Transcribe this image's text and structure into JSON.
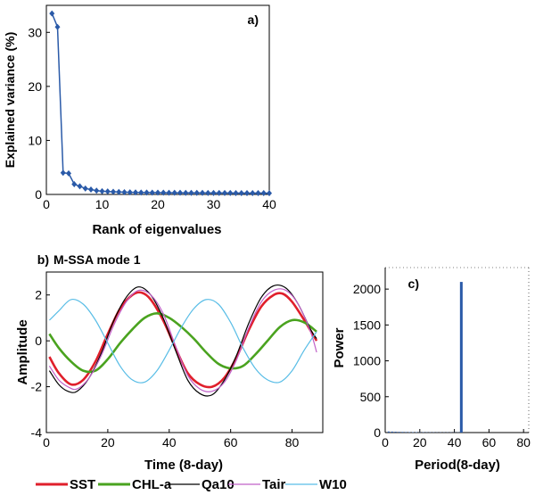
{
  "colors": {
    "SST": "#e01f2b",
    "CHL-a": "#4aa31f",
    "Qa10": "#000000",
    "Tair": "#c060c8",
    "W10": "#59bde6",
    "scree": "#2a5aa8",
    "spectrum": "#2a5aa8"
  },
  "chart_data": [
    {
      "type": "line",
      "panel_label": "a)",
      "title": "",
      "xlabel": "Rank of eigenvalues",
      "ylabel": "Explained variance (%)",
      "xlim": [
        0,
        40
      ],
      "ylim": [
        0,
        35
      ],
      "xticks": [
        0,
        10,
        20,
        30,
        40
      ],
      "yticks": [
        0,
        10,
        20,
        30
      ],
      "grid": false,
      "series": [
        {
          "x": [
            1,
            2,
            3,
            4,
            5,
            6,
            7,
            8,
            9,
            10,
            11,
            12,
            13,
            14,
            15,
            16,
            17,
            18,
            19,
            20,
            21,
            22,
            23,
            24,
            25,
            26,
            27,
            28,
            29,
            30,
            31,
            32,
            33,
            34,
            35,
            36,
            37,
            38,
            39,
            40
          ],
          "values": [
            33.5,
            31.0,
            4.0,
            3.9,
            1.9,
            1.5,
            1.1,
            0.9,
            0.7,
            0.6,
            0.55,
            0.5,
            0.45,
            0.42,
            0.4,
            0.38,
            0.36,
            0.35,
            0.34,
            0.33,
            0.32,
            0.31,
            0.3,
            0.3,
            0.29,
            0.29,
            0.28,
            0.28,
            0.27,
            0.27,
            0.26,
            0.26,
            0.26,
            0.25,
            0.25,
            0.25,
            0.24,
            0.24,
            0.24,
            0.23
          ]
        }
      ]
    },
    {
      "type": "line",
      "panel_label": "b)",
      "title": "M-SSA mode 1",
      "xlabel": "Time (8-day)",
      "ylabel": "Amplitude",
      "xlim": [
        0,
        90
      ],
      "ylim": [
        -4,
        3
      ],
      "xticks": [
        0,
        20,
        40,
        60,
        80
      ],
      "yticks": [
        -4,
        -2,
        0,
        2
      ],
      "grid": false,
      "legend_position": "bottom",
      "series": [
        {
          "name": "SST",
          "x": [
            1,
            4,
            8,
            12,
            16,
            20,
            24,
            28,
            31,
            34,
            38,
            42,
            46,
            50,
            54,
            58,
            62,
            66,
            70,
            74,
            77,
            80,
            84,
            88
          ],
          "values": [
            -0.7,
            -1.4,
            -1.9,
            -1.7,
            -0.9,
            0.3,
            1.4,
            2.0,
            2.1,
            1.8,
            0.9,
            -0.3,
            -1.4,
            -1.9,
            -2.0,
            -1.6,
            -0.7,
            0.5,
            1.5,
            2.0,
            2.05,
            1.7,
            0.9,
            0.0
          ]
        },
        {
          "name": "CHL-a",
          "x": [
            1,
            4,
            8,
            12,
            16,
            20,
            24,
            28,
            32,
            36,
            40,
            44,
            48,
            52,
            56,
            60,
            64,
            68,
            72,
            76,
            80,
            84,
            88
          ],
          "values": [
            0.3,
            -0.3,
            -0.9,
            -1.3,
            -1.3,
            -0.8,
            -0.1,
            0.5,
            1.0,
            1.2,
            1.0,
            0.6,
            0.1,
            -0.5,
            -1.0,
            -1.2,
            -1.1,
            -0.6,
            0.0,
            0.6,
            0.9,
            0.8,
            0.4
          ]
        },
        {
          "name": "Qa10",
          "x": [
            1,
            4,
            7,
            10,
            14,
            18,
            22,
            26,
            30,
            34,
            38,
            42,
            46,
            50,
            54,
            58,
            62,
            66,
            70,
            74,
            78,
            82,
            86,
            88
          ],
          "values": [
            -1.3,
            -1.9,
            -2.2,
            -2.2,
            -1.6,
            -0.5,
            0.9,
            1.9,
            2.35,
            2.0,
            1.0,
            -0.4,
            -1.7,
            -2.3,
            -2.35,
            -1.7,
            -0.6,
            0.8,
            1.9,
            2.4,
            2.3,
            1.6,
            0.5,
            0.1
          ]
        },
        {
          "name": "Tair",
          "x": [
            1,
            4,
            7,
            10,
            14,
            18,
            22,
            26,
            30,
            34,
            38,
            42,
            46,
            50,
            54,
            58,
            62,
            66,
            70,
            74,
            78,
            82,
            86,
            88
          ],
          "values": [
            -1.1,
            -1.7,
            -2.0,
            -2.1,
            -1.6,
            -0.6,
            0.7,
            1.7,
            2.2,
            2.0,
            1.2,
            -0.2,
            -1.5,
            -2.1,
            -2.2,
            -1.8,
            -0.8,
            0.6,
            1.7,
            2.2,
            2.2,
            1.6,
            0.4,
            -0.5
          ]
        },
        {
          "name": "W10",
          "x": [
            1,
            4,
            8,
            12,
            16,
            20,
            24,
            28,
            32,
            36,
            40,
            44,
            48,
            52,
            56,
            60,
            64,
            68,
            72,
            76,
            80,
            84,
            88
          ],
          "values": [
            0.9,
            1.3,
            1.8,
            1.6,
            0.9,
            -0.1,
            -1.1,
            -1.7,
            -1.8,
            -1.3,
            -0.4,
            0.6,
            1.4,
            1.8,
            1.6,
            0.8,
            -0.3,
            -1.2,
            -1.7,
            -1.8,
            -1.3,
            -0.4,
            0.4
          ]
        }
      ]
    },
    {
      "type": "bar",
      "panel_label": "c)",
      "title": "",
      "xlabel": "Period(8-day)",
      "ylabel": "Power",
      "xlim": [
        0,
        83
      ],
      "ylim": [
        0,
        2300
      ],
      "xticks": [
        0,
        20,
        40,
        60,
        80
      ],
      "yticks": [
        0,
        500,
        1000,
        1500,
        2000
      ],
      "grid": false,
      "x": [
        2,
        4,
        6,
        8,
        10,
        12,
        14,
        16,
        18,
        20,
        22,
        24,
        26,
        28,
        30,
        32,
        34,
        36,
        38,
        40,
        42,
        44
      ],
      "values": [
        15,
        14,
        12,
        10,
        9,
        8,
        7,
        6,
        6,
        5,
        5,
        4,
        4,
        4,
        3,
        3,
        3,
        3,
        3,
        3,
        3,
        2100
      ]
    }
  ]
}
